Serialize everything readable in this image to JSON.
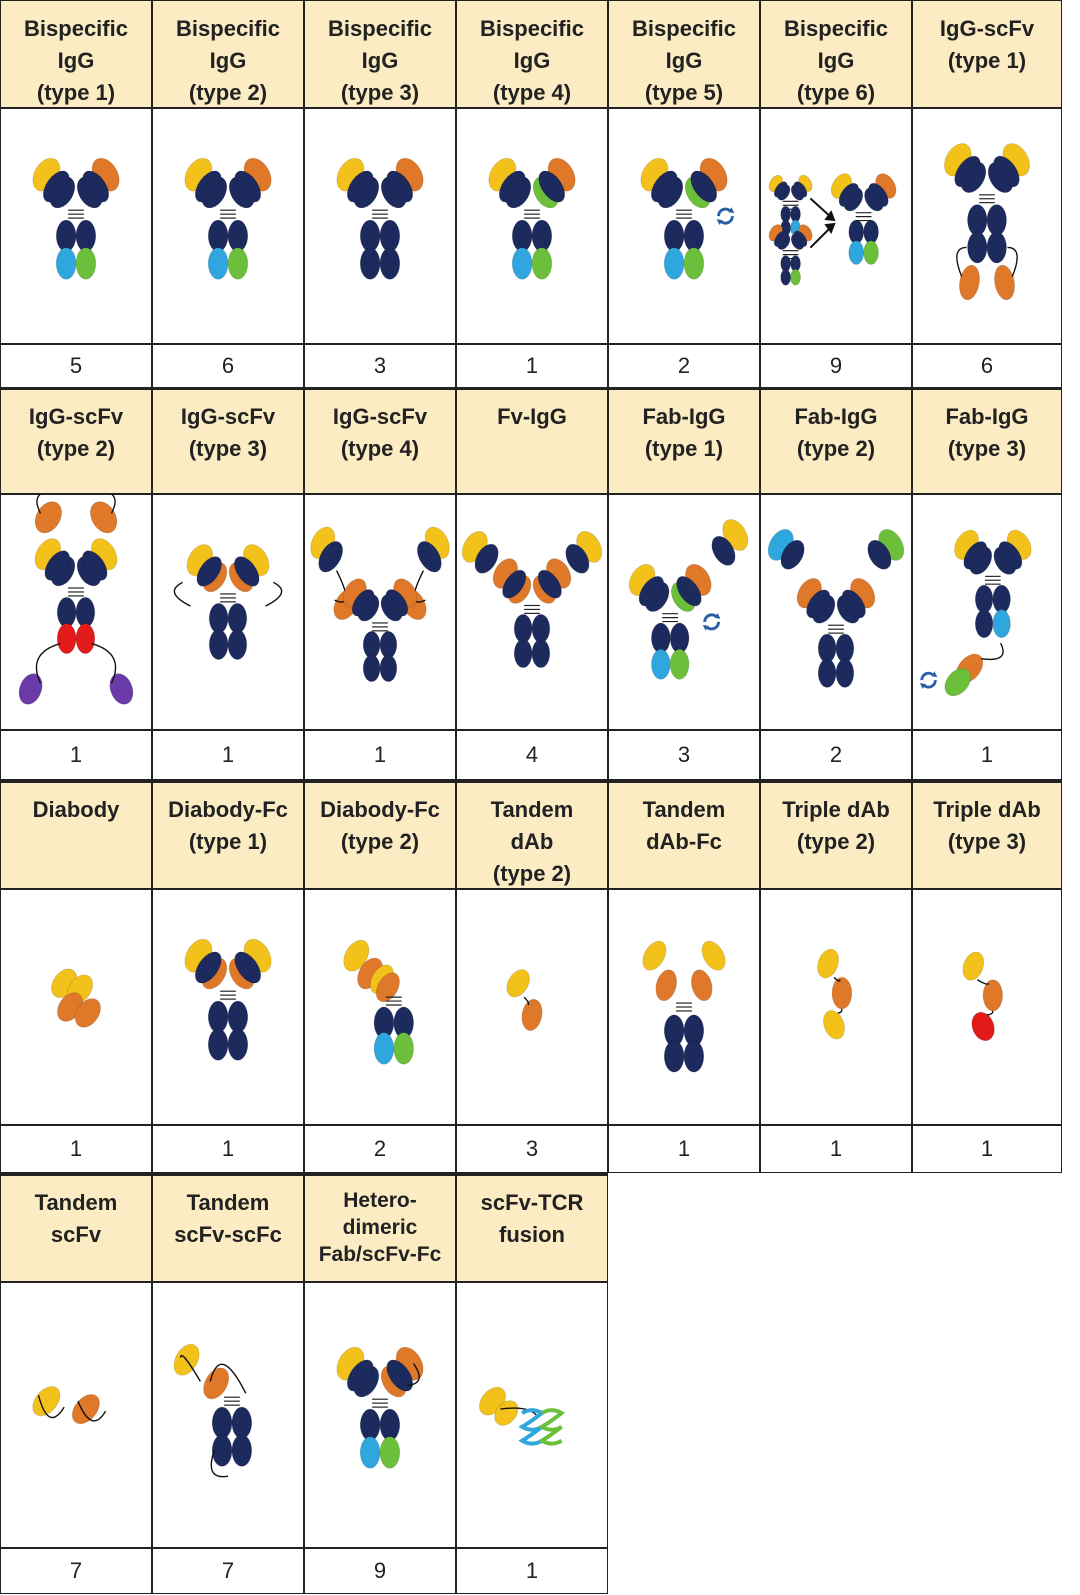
{
  "colors": {
    "header_bg": "#fcecc4",
    "navy": "#1c2a5e",
    "yellow": "#f2c21a",
    "orange": "#e0782a",
    "cyan": "#2fa6dd",
    "green": "#6bbf3a",
    "red": "#e21a1a",
    "purple": "#6a3aa8"
  },
  "rows": [
    {
      "cells": [
        {
          "label": "Bispecific\nIgG\n(type 1)",
          "count": "5",
          "icon": "igg-cyan-green-fc"
        },
        {
          "label": "Bispecific\nIgG\n(type 2)",
          "count": "6",
          "icon": "igg-cyan-green-fc"
        },
        {
          "label": "Bispecific\nIgG\n(type 3)",
          "count": "3",
          "icon": "igg-plain"
        },
        {
          "label": "Bispecific\nIgG\n(type 4)",
          "count": "1",
          "icon": "igg-green-arm"
        },
        {
          "label": "Bispecific\nIgG\n(type 5)",
          "count": "2",
          "icon": "igg-swap-arrows"
        },
        {
          "label": "Bispecific\nIgG\n(type 6)",
          "count": "9",
          "icon": "igg-assembly"
        },
        {
          "label": "IgG-scFv\n(type 1)",
          "count": "6",
          "icon": "igg-scfv-bottom"
        }
      ]
    },
    {
      "cells": [
        {
          "label": "IgG-scFv\n(type 2)",
          "count": "1",
          "icon": "igg-scfv-multi"
        },
        {
          "label": "IgG-scFv\n(type 3)",
          "count": "1",
          "icon": "igg-scfv-side"
        },
        {
          "label": "IgG-scFv\n(type 4)",
          "count": "1",
          "icon": "igg-scfv-top"
        },
        {
          "label": "Fv-IgG",
          "count": "4",
          "icon": "fv-igg"
        },
        {
          "label": "Fab-IgG\n(type 1)",
          "count": "3",
          "icon": "fab-igg-1"
        },
        {
          "label": "Fab-IgG\n(type 2)",
          "count": "2",
          "icon": "fab-igg-2"
        },
        {
          "label": "Fab-IgG\n(type 3)",
          "count": "1",
          "icon": "fab-igg-3"
        }
      ]
    },
    {
      "cells": [
        {
          "label": "Diabody",
          "count": "1",
          "icon": "diabody"
        },
        {
          "label": "Diabody-Fc\n(type 1)",
          "count": "1",
          "icon": "diabody-fc-1"
        },
        {
          "label": "Diabody-Fc\n(type 2)",
          "count": "2",
          "icon": "diabody-fc-2"
        },
        {
          "label": "Tandem\ndAb\n(type 2)",
          "count": "3",
          "icon": "tandem-dab"
        },
        {
          "label": "Tandem\ndAb-Fc",
          "count": "1",
          "icon": "tandem-dab-fc"
        },
        {
          "label": "Triple dAb\n(type 2)",
          "count": "1",
          "icon": "triple-dab-2"
        },
        {
          "label": "Triple dAb\n(type 3)",
          "count": "1",
          "icon": "triple-dab-3"
        }
      ]
    },
    {
      "cells": [
        {
          "label": "Tandem\nscFv",
          "count": "7",
          "icon": "tandem-scfv"
        },
        {
          "label": "Tandem\nscFv-scFc",
          "count": "7",
          "icon": "tandem-scfv-scfc"
        },
        {
          "label": "Hetero-\ndimeric\nFab/scFv-Fc",
          "count": "9",
          "icon": "heterodimeric"
        },
        {
          "label": "scFv-TCR\nfusion",
          "count": "1",
          "icon": "scfv-tcr"
        }
      ]
    }
  ]
}
